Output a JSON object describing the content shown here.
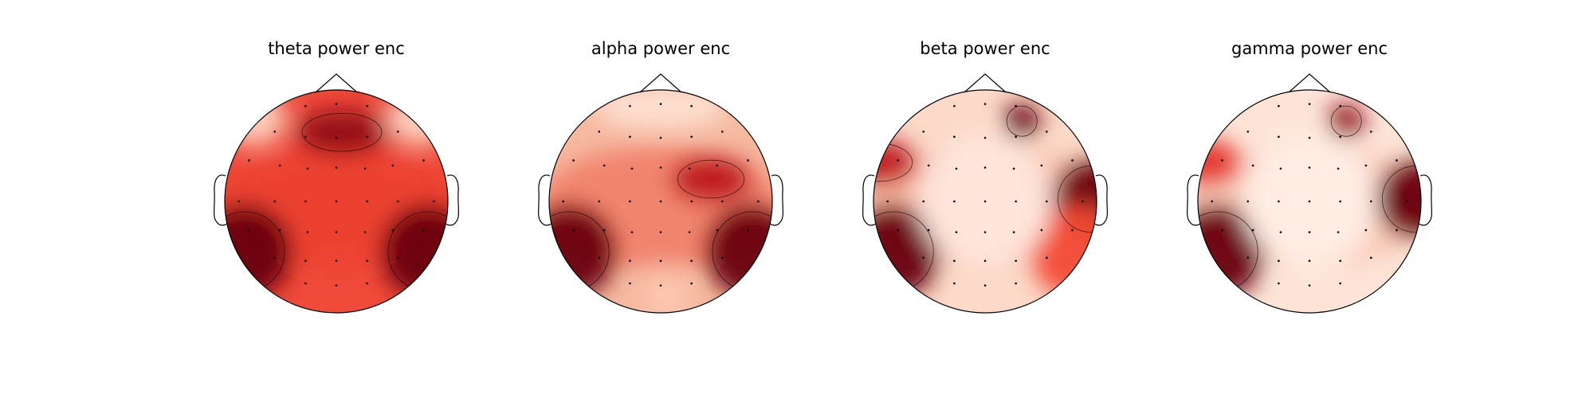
{
  "chart_data": [
    {
      "type": "heatmap",
      "subtype": "topomap",
      "title": "theta power enc",
      "colormap": "Reds",
      "blobs": [
        {
          "region": "frontal-midline-peak",
          "intensity": 0.95
        },
        {
          "region": "left-posterior",
          "intensity": 1.0
        },
        {
          "region": "right-posterior",
          "intensity": 1.0
        },
        {
          "region": "left-frontal-edge",
          "intensity": 0.2
        },
        {
          "region": "right-frontal-edge",
          "intensity": 0.2
        }
      ]
    },
    {
      "type": "heatmap",
      "subtype": "topomap",
      "title": "alpha power enc",
      "colormap": "Reds",
      "blobs": [
        {
          "region": "right-central",
          "intensity": 0.9
        },
        {
          "region": "left-posterior",
          "intensity": 1.0
        },
        {
          "region": "right-posterior",
          "intensity": 1.0
        },
        {
          "region": "occipital-midline",
          "intensity": 0.25
        },
        {
          "region": "frontal",
          "intensity": 0.15
        }
      ]
    },
    {
      "type": "heatmap",
      "subtype": "topomap",
      "title": "beta power enc",
      "colormap": "Reds",
      "blobs": [
        {
          "region": "right-frontal-spot",
          "intensity": 1.0
        },
        {
          "region": "left-temporal",
          "intensity": 0.9
        },
        {
          "region": "right-temporal",
          "intensity": 1.0
        },
        {
          "region": "left-posterior",
          "intensity": 1.0
        },
        {
          "region": "right-posterior",
          "intensity": 0.7
        },
        {
          "region": "central",
          "intensity": 0.1
        }
      ]
    },
    {
      "type": "heatmap",
      "subtype": "topomap",
      "title": "gamma power enc",
      "colormap": "Reds",
      "blobs": [
        {
          "region": "right-frontal-spot",
          "intensity": 0.95
        },
        {
          "region": "left-temporal",
          "intensity": 0.8
        },
        {
          "region": "right-temporal",
          "intensity": 1.0
        },
        {
          "region": "left-posterior",
          "intensity": 1.0
        },
        {
          "region": "central",
          "intensity": 0.05
        }
      ]
    }
  ]
}
